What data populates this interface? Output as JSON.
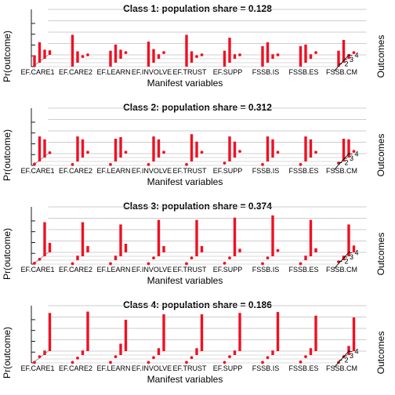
{
  "chart_data": {
    "type": "bar",
    "variables": [
      "EF.CARE1",
      "EF.CARE2",
      "EF.LEARN",
      "EF.INVOLVE",
      "EF.TRUST",
      "EF.SUPP",
      "FSSB.IS",
      "FSSB.ES",
      "FSSB.CM"
    ],
    "outcome_ticks": [
      "1",
      "2",
      "3",
      "4"
    ],
    "xlabel": "Manifest variables",
    "ylabel": "Pr(outcome)",
    "zlabel": "Outcomes",
    "ylim": [
      0,
      1
    ],
    "panels": [
      {
        "title": "Class 1: population share = 0.128",
        "probs": [
          [
            0.25,
            0.45,
            0.2,
            0.1
          ],
          [
            0.7,
            0.25,
            0.05,
            0.0
          ],
          [
            0.35,
            0.4,
            0.2,
            0.05
          ],
          [
            0.55,
            0.3,
            0.1,
            0.05
          ],
          [
            0.7,
            0.25,
            0.05,
            0.0
          ],
          [
            0.35,
            0.55,
            0.1,
            0.0
          ],
          [
            0.45,
            0.45,
            0.1,
            0.0
          ],
          [
            0.45,
            0.4,
            0.1,
            0.05
          ],
          [
            0.35,
            0.5,
            0.1,
            0.05
          ]
        ]
      },
      {
        "title": "Class 2: population share = 0.312",
        "probs": [
          [
            0.03,
            0.55,
            0.4,
            0.02
          ],
          [
            0.02,
            0.55,
            0.4,
            0.03
          ],
          [
            0.02,
            0.5,
            0.45,
            0.03
          ],
          [
            0.02,
            0.55,
            0.4,
            0.03
          ],
          [
            0.02,
            0.6,
            0.35,
            0.03
          ],
          [
            0.05,
            0.55,
            0.35,
            0.05
          ],
          [
            0.02,
            0.55,
            0.4,
            0.03
          ],
          [
            0.02,
            0.55,
            0.4,
            0.03
          ],
          [
            0.05,
            0.5,
            0.4,
            0.05
          ]
        ]
      },
      {
        "title": "Class 3: population share = 0.374",
        "probs": [
          [
            0.02,
            0.02,
            0.75,
            0.21
          ],
          [
            0.01,
            0.1,
            0.75,
            0.14
          ],
          [
            0.01,
            0.1,
            0.7,
            0.19
          ],
          [
            0.01,
            0.05,
            0.8,
            0.14
          ],
          [
            0.01,
            0.05,
            0.8,
            0.14
          ],
          [
            0.02,
            0.05,
            0.85,
            0.08
          ],
          [
            0.01,
            0.05,
            0.9,
            0.04
          ],
          [
            0.01,
            0.1,
            0.8,
            0.09
          ],
          [
            0.05,
            0.1,
            0.7,
            0.15
          ]
        ]
      },
      {
        "title": "Class 4: population share = 0.186",
        "probs": [
          [
            0.01,
            0.05,
            0.1,
            0.84
          ],
          [
            0.01,
            0.02,
            0.1,
            0.87
          ],
          [
            0.01,
            0.05,
            0.25,
            0.69
          ],
          [
            0.01,
            0.03,
            0.15,
            0.81
          ],
          [
            0.01,
            0.03,
            0.15,
            0.81
          ],
          [
            0.01,
            0.05,
            0.1,
            0.84
          ],
          [
            0.01,
            0.03,
            0.1,
            0.86
          ],
          [
            0.02,
            0.05,
            0.15,
            0.78
          ],
          [
            0.01,
            0.05,
            0.2,
            0.74
          ]
        ]
      }
    ]
  }
}
